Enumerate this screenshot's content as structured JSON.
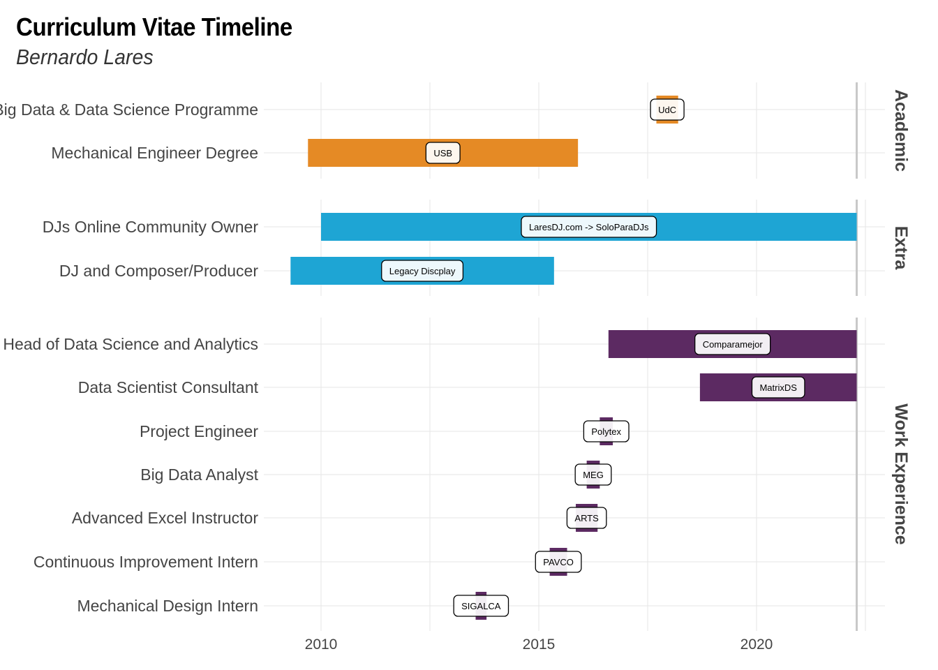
{
  "title": "Curriculum Vitae Timeline",
  "subtitle": "Bernardo Lares",
  "chart_data": {
    "type": "bar",
    "orientation": "horizontal-timeline",
    "x_ticks": [
      "2010",
      "2015",
      "2020"
    ],
    "xlim": [
      2008.7,
      2023.0
    ],
    "today_line": 2022.3,
    "colors": {
      "Academic": "#E58A25",
      "Extra": "#1EA5D4",
      "Work Experience": "#5C2A62"
    },
    "facets": [
      {
        "name": "Academic",
        "rows": [
          {
            "role": "Big Data & Data Science Programme",
            "place": "UdC",
            "start": 2017.7,
            "end": 2018.2
          },
          {
            "role": "Mechanical Engineer Degree",
            "place": "USB",
            "start": 2009.7,
            "end": 2015.9
          }
        ]
      },
      {
        "name": "Extra",
        "rows": [
          {
            "role": "DJs Online Community Owner",
            "place": "LaresDJ.com -> SoloParaDJs",
            "start": 2010.0,
            "end": 2022.3
          },
          {
            "role": "DJ and Composer/Producer",
            "place": "Legacy Discplay",
            "start": 2009.3,
            "end": 2015.35
          }
        ]
      },
      {
        "name": "Work Experience",
        "rows": [
          {
            "role": "Head of Data Science and Analytics",
            "place": "Comparamejor",
            "start": 2016.6,
            "end": 2022.3
          },
          {
            "role": "Data Scientist Consultant",
            "place": "MatrixDS",
            "start": 2018.7,
            "end": 2022.3
          },
          {
            "role": "Project Engineer",
            "place": "Polytex",
            "start": 2016.4,
            "end": 2016.7
          },
          {
            "role": "Big Data Analyst",
            "place": "MEG",
            "start": 2016.1,
            "end": 2016.4
          },
          {
            "role": "Advanced Excel Instructor",
            "place": "ARTS",
            "start": 2015.85,
            "end": 2016.35
          },
          {
            "role": "Continuous Improvement Intern",
            "place": "PAVCO",
            "start": 2015.25,
            "end": 2015.65
          },
          {
            "role": "Mechanical Design Intern",
            "place": "SIGALCA",
            "start": 2013.55,
            "end": 2013.8
          }
        ]
      }
    ]
  }
}
